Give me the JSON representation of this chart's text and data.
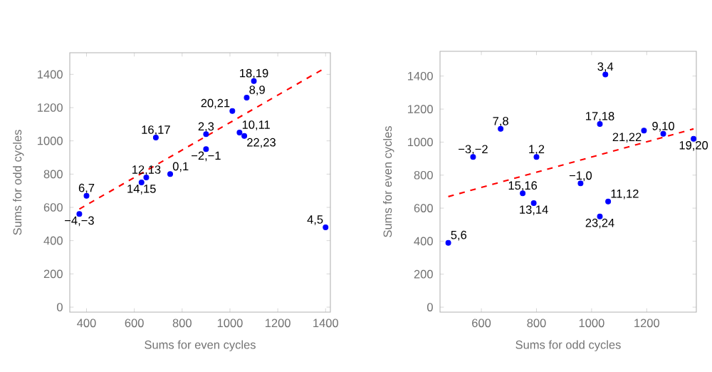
{
  "chart_data": [
    {
      "type": "scatter",
      "xlabel": "Sums for even cycles",
      "ylabel": "Sums for odd cycles",
      "xlim": [
        330,
        1420
      ],
      "ylim": [
        -30,
        1530
      ],
      "xticks": [
        400,
        600,
        800,
        1000,
        1200,
        1400
      ],
      "yticks": [
        0,
        200,
        400,
        600,
        800,
        1000,
        1200,
        1400
      ],
      "series": [
        {
          "type": "scatter",
          "marker": "circle",
          "color": "#0000ff",
          "x": [
            370,
            400,
            630,
            650,
            750,
            690,
            900,
            900,
            1010,
            1070,
            1100,
            1040,
            1060,
            1400
          ],
          "values": [
            560,
            670,
            750,
            780,
            800,
            1020,
            950,
            1040,
            1180,
            1260,
            1360,
            1050,
            1030,
            480
          ]
        },
        {
          "type": "line",
          "marker": "none",
          "line_style": "dashed",
          "color": "#ff0000",
          "x": [
            370,
            1400
          ],
          "values": [
            590,
            1440
          ]
        }
      ],
      "annotations": [
        {
          "text": "−4,−3",
          "x": 370,
          "y": 560
        },
        {
          "text": "6,7",
          "x": 400,
          "y": 670
        },
        {
          "text": "14,15",
          "x": 630,
          "y": 750
        },
        {
          "text": "12,13",
          "x": 650,
          "y": 780
        },
        {
          "text": "0,1",
          "x": 750,
          "y": 800
        },
        {
          "text": "16,17",
          "x": 690,
          "y": 1020
        },
        {
          "text": "−2,−1",
          "x": 900,
          "y": 950
        },
        {
          "text": "2,3",
          "x": 900,
          "y": 1040
        },
        {
          "text": "20,21",
          "x": 1010,
          "y": 1180
        },
        {
          "text": "8,9",
          "x": 1070,
          "y": 1260
        },
        {
          "text": "18,19",
          "x": 1100,
          "y": 1360
        },
        {
          "text": "10,11",
          "x": 1040,
          "y": 1050
        },
        {
          "text": "22,23",
          "x": 1060,
          "y": 1030
        },
        {
          "text": "4,5",
          "x": 1400,
          "y": 480
        }
      ]
    },
    {
      "type": "scatter",
      "xlabel": "Sums for odd cycles",
      "ylabel": "Sums for even cycles",
      "xlim": [
        450,
        1380
      ],
      "ylim": [
        -30,
        1550
      ],
      "xticks": [
        600,
        800,
        1000,
        1200
      ],
      "yticks": [
        0,
        200,
        400,
        600,
        800,
        1000,
        1200,
        1400
      ],
      "series": [
        {
          "type": "scatter",
          "marker": "circle",
          "color": "#0000ff",
          "x": [
            480,
            570,
            670,
            800,
            750,
            790,
            960,
            1030,
            1050,
            1060,
            1030,
            1190,
            1260,
            1370
          ],
          "values": [
            390,
            910,
            1080,
            910,
            690,
            630,
            750,
            1110,
            1410,
            640,
            550,
            1070,
            1050,
            1020
          ]
        },
        {
          "type": "line",
          "marker": "none",
          "line_style": "dashed",
          "color": "#ff0000",
          "x": [
            480,
            1370
          ],
          "values": [
            670,
            1080
          ]
        }
      ],
      "annotations": [
        {
          "text": "5,6",
          "x": 480,
          "y": 390
        },
        {
          "text": "−3,−2",
          "x": 570,
          "y": 910
        },
        {
          "text": "7,8",
          "x": 670,
          "y": 1080
        },
        {
          "text": "1,2",
          "x": 800,
          "y": 910
        },
        {
          "text": "15,16",
          "x": 750,
          "y": 690
        },
        {
          "text": "13,14",
          "x": 790,
          "y": 630
        },
        {
          "text": "−1,0",
          "x": 960,
          "y": 750
        },
        {
          "text": "17,18",
          "x": 1030,
          "y": 1110
        },
        {
          "text": "3,4",
          "x": 1050,
          "y": 1410
        },
        {
          "text": "11,12",
          "x": 1060,
          "y": 640
        },
        {
          "text": "23,24",
          "x": 1030,
          "y": 550
        },
        {
          "text": "21,22",
          "x": 1190,
          "y": 1070
        },
        {
          "text": "9,10",
          "x": 1260,
          "y": 1050
        },
        {
          "text": "19,20",
          "x": 1370,
          "y": 1020
        }
      ]
    }
  ]
}
